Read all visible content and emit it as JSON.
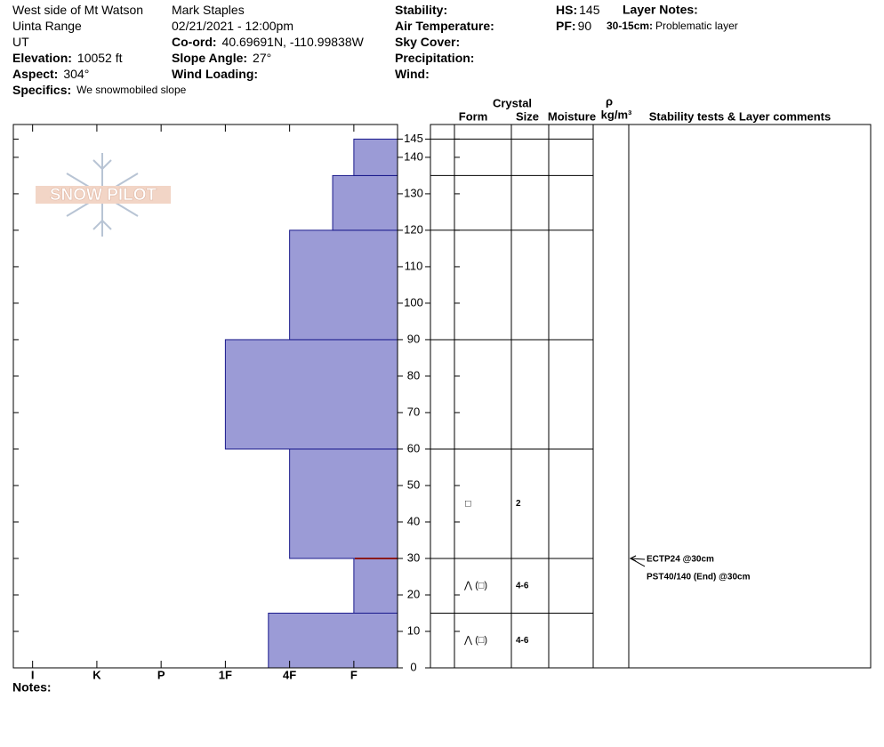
{
  "header": {
    "columns": [
      [
        {
          "value": "West side of Mt Watson"
        },
        {
          "value": "Uinta Range"
        },
        {
          "value": "UT"
        },
        {
          "label": "Elevation:",
          "value": "10052 ft"
        },
        {
          "label": "Aspect:",
          "value": "304°"
        },
        {
          "label": "Specifics:",
          "value": "We snowmobiled slope"
        }
      ],
      [
        {
          "value": "Mark Staples"
        },
        {
          "value": "02/21/2021 - 12:00pm"
        },
        {
          "label": "Co-ord:",
          "value": "40.69691N, -110.99838W"
        },
        {
          "label": "Slope Angle:",
          "value": "27°"
        },
        {
          "label": "Wind Loading:"
        }
      ],
      [
        {
          "label": "Stability:"
        },
        {
          "label": "Air Temperature:"
        },
        {
          "label": "Sky Cover:"
        },
        {
          "label": "Precipitation:"
        },
        {
          "label": "Wind:"
        }
      ],
      [
        {
          "label": "HS:",
          "value": 145
        },
        {
          "label": "PF:",
          "value": 90
        }
      ]
    ],
    "layer_notes": {
      "label": "Layer Notes:",
      "items": [
        {
          "label": "30-15cm:",
          "value": "Problematic layer"
        }
      ]
    },
    "logo": "SNOW PILOT",
    "notes": "Notes:"
  },
  "chart_data": {
    "type": "snow-profile",
    "color": "#9b9bd6",
    "edge_color": "#1a1a8c",
    "xlim": [
      6.3,
      0.32
    ],
    "xticks": [
      {
        "value": 6,
        "label": "I"
      },
      {
        "value": 5,
        "label": "K"
      },
      {
        "value": 4,
        "label": "P"
      },
      {
        "value": 3,
        "label": "1F"
      },
      {
        "value": 2,
        "label": "4F"
      },
      {
        "value": 1,
        "label": "F"
      }
    ],
    "ylim": [
      0,
      149
    ],
    "yticks": [
      0,
      10,
      20,
      30,
      40,
      50,
      60,
      70,
      80,
      90,
      100,
      110,
      120,
      130,
      140,
      145
    ],
    "layers": [
      {
        "bottom": 0,
        "top": 15,
        "hardness": 2.33,
        "form": "⋀ (□)",
        "size": "4-6"
      },
      {
        "bottom": 15,
        "top": 30,
        "hardness": 1,
        "form": "⋀ (□)",
        "size": "4-6"
      },
      {
        "bottom": 30,
        "top": 60,
        "hardness": 2,
        "form": "□",
        "size": "2"
      },
      {
        "bottom": 60,
        "top": 90,
        "hardness": 3
      },
      {
        "bottom": 90,
        "top": 120,
        "hardness": 2
      },
      {
        "bottom": 120,
        "top": 135,
        "hardness": 1.33
      },
      {
        "bottom": 135,
        "top": 145,
        "hardness": 1
      }
    ],
    "problem_line": {
      "depth": 30,
      "color": "#8b1a1a"
    },
    "columns": {
      "crystal": "Crystal",
      "form": "Form",
      "size": "Size",
      "moisture": "Moisture",
      "rho": "ρ",
      "density": "kg/m³",
      "comments": "Stability tests & Layer comments"
    },
    "stability_tests": [
      {
        "label": "ECTP24 @30cm",
        "depth": 30
      },
      {
        "label": "PST40/140 (End) @30cm",
        "depth": 30
      }
    ]
  }
}
